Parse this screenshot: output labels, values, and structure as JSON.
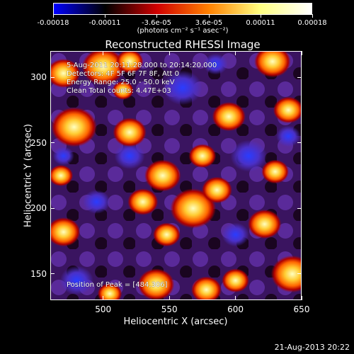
{
  "colorbar": {
    "tick_labels": [
      "-0.00018",
      "-0.00011",
      "-3.6e-05",
      "3.6e-05",
      "0.00011",
      "0.00018"
    ],
    "units_label": "(photons cm⁻² s⁻¹ asec⁻²)",
    "colors": [
      "#0000ff",
      "#000000",
      "#d00000",
      "#ff8000",
      "#ffff80",
      "#ffffff"
    ]
  },
  "chart_data": {
    "type": "heatmap",
    "title": "Reconstructed RHESSI Image",
    "xlabel": "Heliocentric X (arcsec)",
    "ylabel": "Heliocentric Y (arcsec)",
    "xlim": [
      460,
      650
    ],
    "ylim": [
      130,
      320
    ],
    "x_ticks": [
      500,
      550,
      600,
      650
    ],
    "y_ticks": [
      150,
      200,
      250,
      300
    ],
    "info_lines": [
      "5-Aug-2011 20:11:28.000 to 20:14:20.000",
      "Detectors: 4F 5F 6F 7F 8F, Att 0",
      "Energy Range: 25.0 - 50.0 keV",
      "Clean    Total counts: 4.47E+03"
    ],
    "peak_annotation": "Position of Peak = [484,306]",
    "hot_blobs": [
      {
        "x": 470,
        "y": 303,
        "r": 11
      },
      {
        "x": 500,
        "y": 308,
        "r": 14
      },
      {
        "x": 520,
        "y": 312,
        "r": 9
      },
      {
        "x": 478,
        "y": 262,
        "r": 15
      },
      {
        "x": 520,
        "y": 258,
        "r": 11
      },
      {
        "x": 545,
        "y": 225,
        "r": 12
      },
      {
        "x": 530,
        "y": 205,
        "r": 10
      },
      {
        "x": 568,
        "y": 200,
        "r": 15
      },
      {
        "x": 586,
        "y": 214,
        "r": 10
      },
      {
        "x": 548,
        "y": 180,
        "r": 9
      },
      {
        "x": 470,
        "y": 182,
        "r": 11
      },
      {
        "x": 595,
        "y": 270,
        "r": 11
      },
      {
        "x": 575,
        "y": 240,
        "r": 9
      },
      {
        "x": 628,
        "y": 312,
        "r": 12
      },
      {
        "x": 640,
        "y": 275,
        "r": 10
      },
      {
        "x": 622,
        "y": 188,
        "r": 11
      },
      {
        "x": 643,
        "y": 150,
        "r": 14
      },
      {
        "x": 600,
        "y": 145,
        "r": 9
      },
      {
        "x": 540,
        "y": 142,
        "r": 12
      },
      {
        "x": 578,
        "y": 138,
        "r": 10
      },
      {
        "x": 505,
        "y": 135,
        "r": 8
      },
      {
        "x": 630,
        "y": 228,
        "r": 9
      },
      {
        "x": 515,
        "y": 290,
        "r": 7
      },
      {
        "x": 468,
        "y": 225,
        "r": 8
      }
    ],
    "cold_blobs": [
      {
        "x": 560,
        "y": 292,
        "r": 13
      },
      {
        "x": 610,
        "y": 240,
        "r": 12
      },
      {
        "x": 640,
        "y": 255,
        "r": 8
      },
      {
        "x": 480,
        "y": 145,
        "r": 11
      },
      {
        "x": 600,
        "y": 180,
        "r": 9
      },
      {
        "x": 520,
        "y": 240,
        "r": 10
      },
      {
        "x": 495,
        "y": 205,
        "r": 9
      },
      {
        "x": 585,
        "y": 310,
        "r": 8
      },
      {
        "x": 470,
        "y": 240,
        "r": 7
      }
    ]
  },
  "footer": {
    "date": "21-Aug-2013 20:22"
  }
}
